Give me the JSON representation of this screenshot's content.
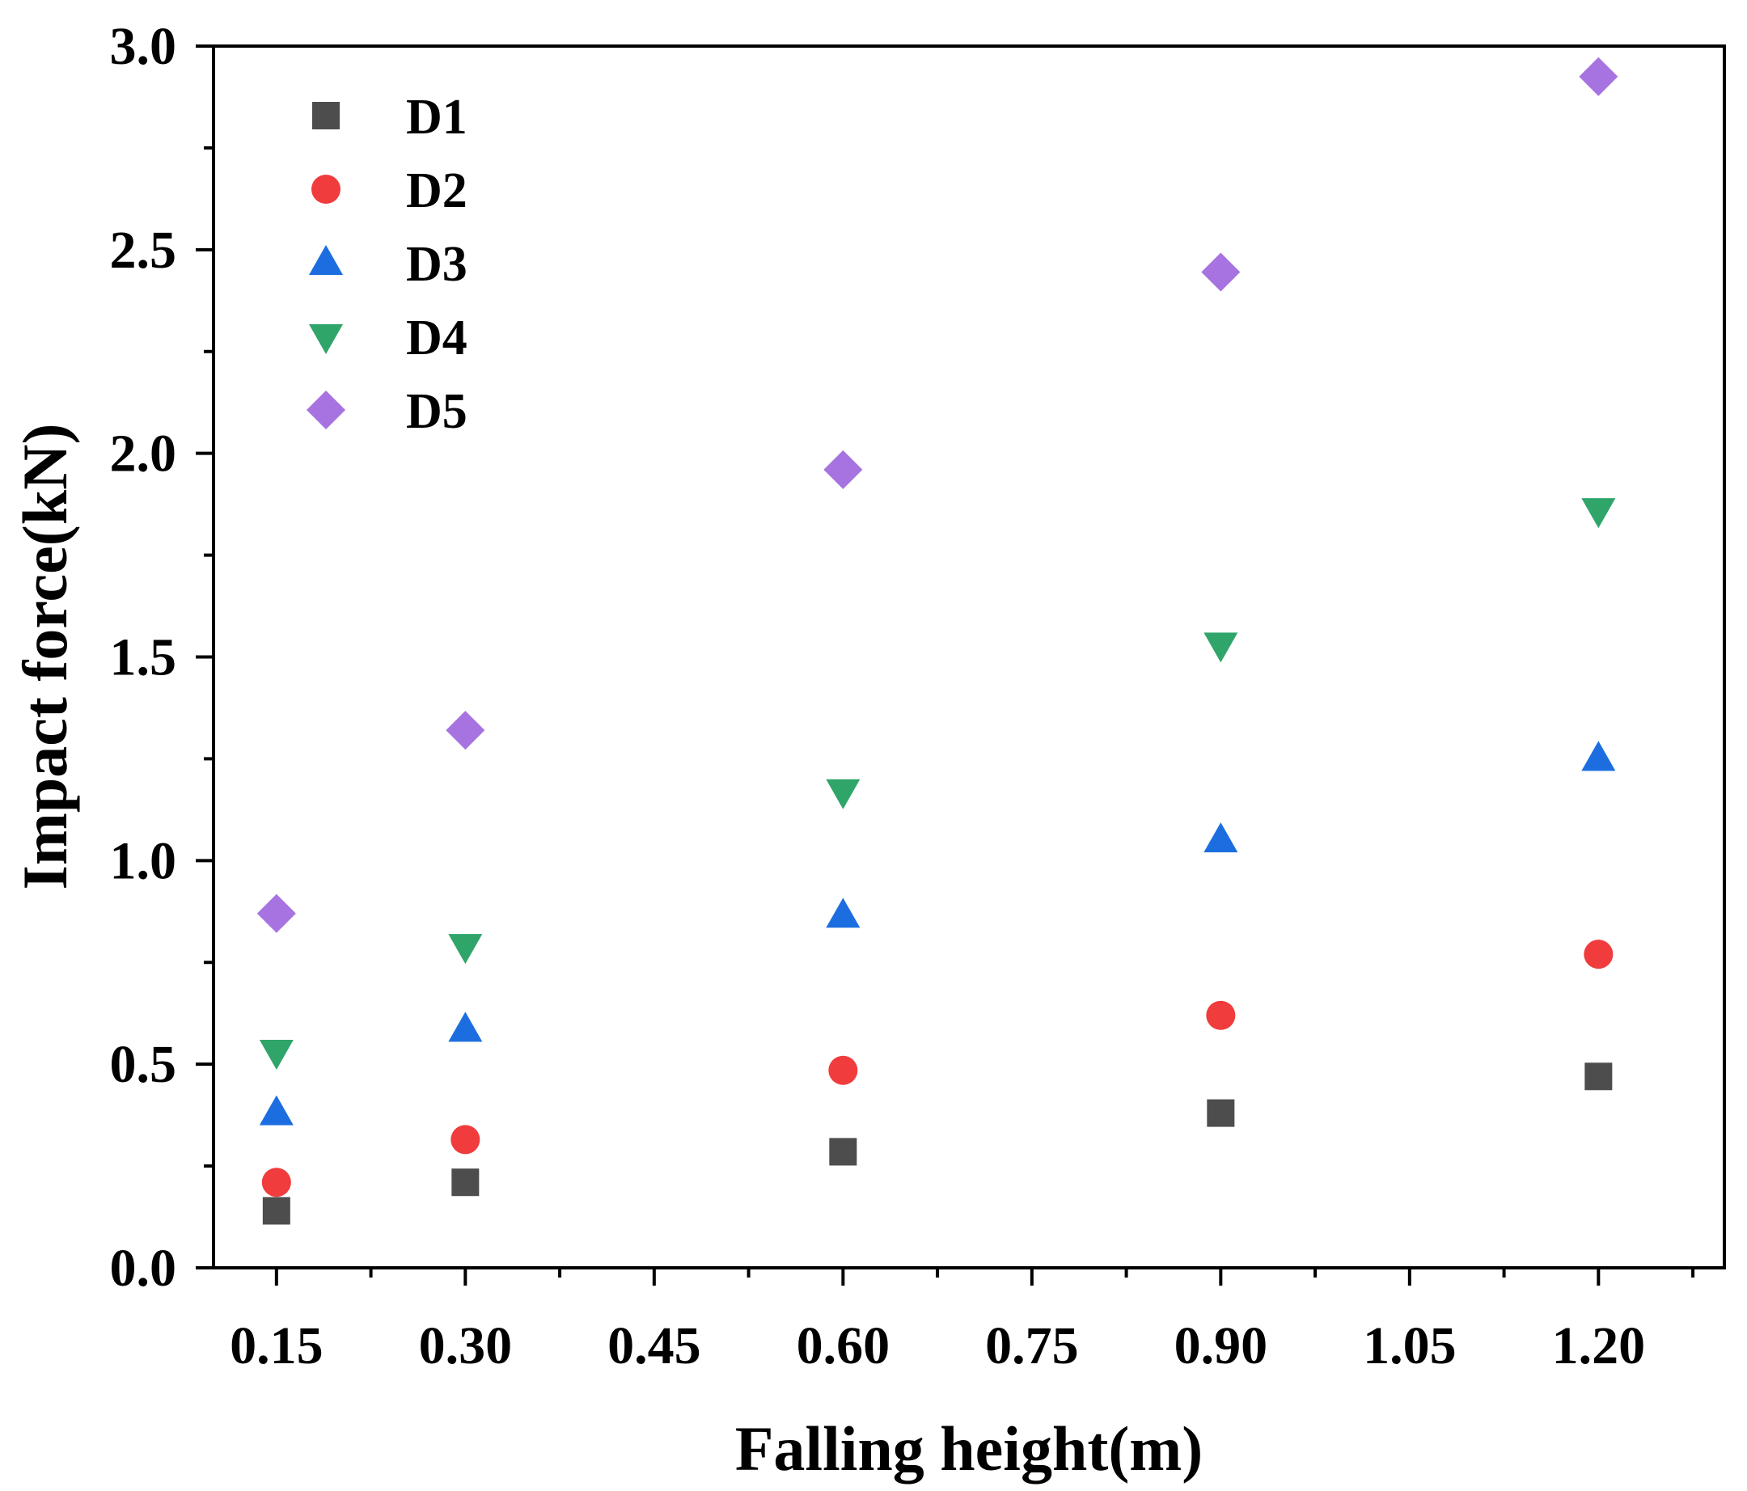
{
  "chart_data": {
    "type": "scatter",
    "title": "",
    "xlabel": "Falling height(m)",
    "ylabel": "Impact force(kN)",
    "xlim": [
      0.1,
      1.3
    ],
    "ylim": [
      0.0,
      3.0
    ],
    "x_major_ticks": [
      0.15,
      0.3,
      0.45,
      0.6,
      0.75,
      0.9,
      1.05,
      1.2
    ],
    "x_tick_labels": [
      "0.15",
      "0.30",
      "0.45",
      "0.60",
      "0.75",
      "0.90",
      "1.05",
      "1.20"
    ],
    "y_major_ticks": [
      0.0,
      0.5,
      1.0,
      1.5,
      2.0,
      2.5,
      3.0
    ],
    "y_tick_labels": [
      "0.0",
      "0.5",
      "1.0",
      "1.5",
      "2.0",
      "2.5",
      "3.0"
    ],
    "grid": false,
    "legend_position": "top-left",
    "x": [
      0.15,
      0.3,
      0.6,
      0.9,
      1.2
    ],
    "series": [
      {
        "name": "D1",
        "marker": "square",
        "color": "#4d4d4d",
        "values": [
          0.14,
          0.21,
          0.285,
          0.38,
          0.47
        ]
      },
      {
        "name": "D2",
        "marker": "circle",
        "color": "#f03c3c",
        "values": [
          0.21,
          0.315,
          0.485,
          0.62,
          0.77
        ]
      },
      {
        "name": "D3",
        "marker": "triangle-up",
        "color": "#1c6ee0",
        "values": [
          0.38,
          0.585,
          0.865,
          1.05,
          1.25
        ]
      },
      {
        "name": "D4",
        "marker": "triangle-down",
        "color": "#2fa56a",
        "values": [
          0.53,
          0.79,
          1.17,
          1.53,
          1.86
        ]
      },
      {
        "name": "D5",
        "marker": "diamond",
        "color": "#a773e0",
        "values": [
          0.87,
          1.32,
          1.96,
          2.445,
          2.925
        ]
      }
    ]
  }
}
